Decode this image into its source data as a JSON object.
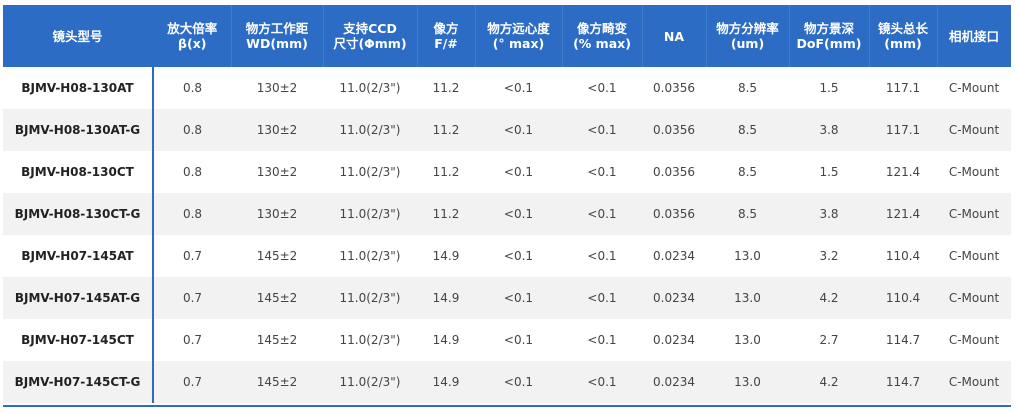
{
  "table": {
    "headers": [
      {
        "lines": [
          "镜头型号"
        ]
      },
      {
        "lines": [
          "放大倍率",
          "β(x)"
        ]
      },
      {
        "lines": [
          "物方工作距",
          "WD(mm)"
        ]
      },
      {
        "lines": [
          "支持CCD",
          "尺寸(Φmm)"
        ]
      },
      {
        "lines": [
          "像方",
          "F/#"
        ]
      },
      {
        "lines": [
          "物方远心度",
          "(° max)"
        ]
      },
      {
        "lines": [
          "像方畸变",
          "(% max)"
        ]
      },
      {
        "lines": [
          "NA"
        ]
      },
      {
        "lines": [
          "物方分辨率",
          "(um)"
        ]
      },
      {
        "lines": [
          "物方景深",
          "DoF(mm)"
        ]
      },
      {
        "lines": [
          "镜头总长",
          "(mm)"
        ]
      },
      {
        "lines": [
          "相机接口"
        ]
      }
    ],
    "rows": [
      [
        "BJMV-H08-130AT",
        "0.8",
        "130±2",
        "11.0(2/3\")",
        "11.2",
        "<0.1",
        "<0.1",
        "0.0356",
        "8.5",
        "1.5",
        "117.1",
        "C-Mount"
      ],
      [
        "BJMV-H08-130AT-G",
        "0.8",
        "130±2",
        "11.0(2/3\")",
        "11.2",
        "<0.1",
        "<0.1",
        "0.0356",
        "8.5",
        "3.8",
        "117.1",
        "C-Mount"
      ],
      [
        "BJMV-H08-130CT",
        "0.8",
        "130±2",
        "11.0(2/3\")",
        "11.2",
        "<0.1",
        "<0.1",
        "0.0356",
        "8.5",
        "1.5",
        "121.4",
        "C-Mount"
      ],
      [
        "BJMV-H08-130CT-G",
        "0.8",
        "130±2",
        "11.0(2/3\")",
        "11.2",
        "<0.1",
        "<0.1",
        "0.0356",
        "8.5",
        "3.8",
        "121.4",
        "C-Mount"
      ],
      [
        "BJMV-H07-145AT",
        "0.7",
        "145±2",
        "11.0(2/3\")",
        "14.9",
        "<0.1",
        "<0.1",
        "0.0234",
        "13.0",
        "3.2",
        "110.4",
        "C-Mount"
      ],
      [
        "BJMV-H07-145AT-G",
        "0.7",
        "145±2",
        "11.0(2/3\")",
        "14.9",
        "<0.1",
        "<0.1",
        "0.0234",
        "13.0",
        "4.2",
        "110.4",
        "C-Mount"
      ],
      [
        "BJMV-H07-145CT",
        "0.7",
        "145±2",
        "11.0(2/3\")",
        "14.9",
        "<0.1",
        "<0.1",
        "0.0234",
        "13.0",
        "2.7",
        "114.7",
        "C-Mount"
      ],
      [
        "BJMV-H07-145CT-G",
        "0.7",
        "145±2",
        "11.0(2/3\")",
        "14.9",
        "<0.1",
        "<0.1",
        "0.0234",
        "13.0",
        "4.2",
        "114.7",
        "C-Mount"
      ]
    ]
  },
  "colors": {
    "header_bg": "#2d6cc4",
    "header_text": "#ffffff",
    "row_alt_bg": "#f2f2f2",
    "text": "#444444"
  }
}
